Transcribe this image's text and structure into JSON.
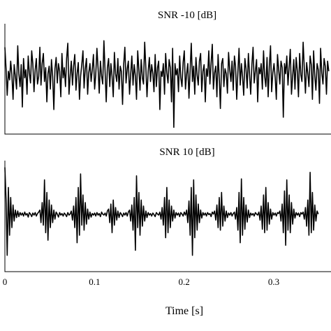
{
  "chart_data": [
    {
      "type": "line",
      "title": "SNR -10 [dB]",
      "xlim": [
        0,
        0.36
      ],
      "ylim": [
        -1,
        1
      ],
      "grid": false,
      "series": [
        {
          "x_start": 0,
          "x_step": 0.0013,
          "values": [
            0.62,
            0.2,
            -0.32,
            0.15,
            -0.02,
            0.35,
            0.08,
            -0.4,
            0.28,
            0.05,
            -0.2,
            0.65,
            0.1,
            -0.15,
            0.28,
            -0.55,
            0.4,
            0.02,
            0.18,
            -0.3,
            0.45,
            0.12,
            -0.08,
            0.55,
            0.3,
            -0.25,
            0.18,
            0.4,
            -0.1,
            0.05,
            0.62,
            -0.12,
            0.3,
            0.5,
            -0.05,
            0.22,
            -0.45,
            0.1,
            0.25,
            -0.2,
            0.38,
            0.05,
            -0.6,
            0.2,
            0.42,
            -0.08,
            0.3,
            0.15,
            -0.35,
            0.5,
            0.02,
            0.22,
            -0.15,
            0.4,
            0.7,
            -0.3,
            0.05,
            0.35,
            -0.12,
            0.25,
            0.48,
            -0.22,
            0.1,
            0.32,
            -0.4,
            0.05,
            0.28,
            0.55,
            -0.18,
            0.2,
            0.4,
            -0.3,
            0.12,
            0.3,
            -0.05,
            0.18,
            0.48,
            -0.2,
            0.08,
            0.6,
            0.2,
            -0.28,
            0.35,
            0.05,
            -0.1,
            0.75,
            0.15,
            -0.45,
            0.22,
            0.4,
            -0.15,
            0.3,
            0.05,
            -0.35,
            0.52,
            0.1,
            -0.05,
            0.4,
            -0.2,
            0.25,
            0.15,
            -0.5,
            0.3,
            0.62,
            -0.08,
            0.2,
            0.35,
            -0.3,
            0.1,
            0.45,
            -0.12,
            0.28,
            0.05,
            -0.4,
            0.55,
            0.18,
            -0.22,
            0.38,
            0.02,
            -0.1,
            0.72,
            0.2,
            -0.35,
            0.15,
            0.42,
            -0.05,
            0.28,
            0.1,
            -0.25,
            0.48,
            -0.15,
            0.22,
            0.35,
            -0.6,
            0.15,
            0.05,
            0.3,
            -0.3,
            0.5,
            0.12,
            -0.08,
            0.38,
            0.22,
            -0.45,
            0.6,
            -0.95,
            0.3,
            0.08,
            0.2,
            -0.25,
            0.45,
            0.02,
            -0.15,
            0.33,
            0.55,
            -0.2,
            0.1,
            0.3,
            -0.38,
            0.18,
            0.7,
            -0.05,
            0.25,
            -0.3,
            0.42,
            0.08,
            -0.12,
            0.35,
            0.5,
            -0.25,
            0.15,
            0.28,
            -0.45,
            0.2,
            0.05,
            0.55,
            -0.1,
            0.3,
            0.68,
            -0.2,
            0.12,
            0.25,
            -0.35,
            0.48,
            0.02,
            -0.58,
            0.3,
            0.4,
            -0.15,
            0.2,
            0.1,
            -0.28,
            0.52,
            0.18,
            -0.05,
            0.35,
            -0.22,
            0.45,
            0.25,
            -0.4,
            0.15,
            0.6,
            -0.12,
            0.3,
            0.05,
            -0.32,
            0.4,
            0.2,
            -0.18,
            0.5,
            0.08,
            -0.3,
            0.28,
            0.62,
            -0.08,
            0.15,
            0.38,
            -0.45,
            0.22,
            0.1,
            0.3,
            -0.2,
            0.55,
            0.05,
            -0.15,
            0.42,
            -0.35,
            0.25,
            0.65,
            -0.25,
            0.12,
            0.3,
            0.02,
            -0.4,
            0.48,
            0.18,
            -0.1,
            0.35,
            0.22,
            -0.75,
            0.3,
            0.1,
            0.45,
            -0.12,
            0.25,
            0.58,
            -0.3,
            0.05,
            0.38,
            -0.2,
            0.42,
            0.15,
            -0.35,
            0.5,
            0.08,
            -0.05,
            0.72,
            0.2,
            -0.28,
            0.32,
            0.1,
            -0.15,
            0.45,
            0.28,
            -0.4,
            0.55,
            0.05,
            -0.22,
            0.3,
            0.18,
            -0.48,
            0.6,
            0.12,
            -0.1,
            0.4,
            0.25,
            -0.3,
            0.35,
            0.15
          ]
        }
      ]
    },
    {
      "type": "line",
      "title": "SNR 10 [dB]",
      "xlabel": "Time [s]",
      "xticks": [
        "0",
        "0.1",
        "0.2",
        "0.3"
      ],
      "xlim": [
        0,
        0.36
      ],
      "ylim": [
        -1,
        1
      ],
      "grid": false,
      "series": [
        {
          "x_start": 0,
          "x_step": 0.0013,
          "values": [
            0.95,
            0.3,
            -0.8,
            0.55,
            -0.4,
            0.35,
            -0.25,
            0.2,
            -0.12,
            0.1,
            -0.05,
            0.08,
            -0.03,
            0.05,
            0.0,
            0.04,
            -0.02,
            0.06,
            0.0,
            0.03,
            -0.04,
            0.05,
            0.02,
            -0.03,
            0.04,
            0.0,
            0.05,
            -0.02,
            0.03,
            0.06,
            0.1,
            -0.15,
            0.25,
            -0.2,
            0.7,
            -0.35,
            0.45,
            -0.5,
            0.3,
            -0.25,
            0.2,
            -0.15,
            0.1,
            -0.08,
            0.06,
            0.02,
            -0.04,
            0.05,
            0.0,
            0.03,
            -0.02,
            0.04,
            0.01,
            -0.03,
            0.05,
            0.0,
            0.02,
            0.08,
            -0.1,
            0.18,
            -0.25,
            0.35,
            -0.55,
            0.55,
            -0.4,
            0.82,
            -0.2,
            0.4,
            -0.3,
            0.25,
            -0.18,
            0.12,
            -0.08,
            0.06,
            -0.04,
            0.03,
            0.0,
            0.04,
            -0.02,
            0.05,
            0.0,
            0.03,
            -0.03,
            0.06,
            0.02,
            0.0,
            0.04,
            -0.02,
            0.08,
            0.12,
            -0.15,
            0.22,
            -0.35,
            0.3,
            -0.2,
            0.15,
            -0.1,
            0.08,
            -0.05,
            0.05,
            0.02,
            -0.03,
            0.04,
            0.0,
            0.05,
            -0.02,
            0.06,
            0.1,
            -0.12,
            0.2,
            -0.3,
            0.35,
            -0.7,
            0.78,
            -0.25,
            0.45,
            -0.4,
            0.3,
            -0.22,
            0.18,
            -0.12,
            0.08,
            -0.05,
            0.05,
            0.0,
            0.03,
            -0.02,
            0.04,
            0.01,
            -0.03,
            0.05,
            0.02,
            0.0,
            0.06,
            -0.08,
            0.15,
            -0.2,
            0.35,
            -0.45,
            0.55,
            -0.35,
            0.3,
            -0.25,
            0.18,
            -0.12,
            0.1,
            -0.06,
            0.05,
            0.0,
            0.04,
            -0.03,
            0.05,
            0.02,
            -0.02,
            0.06,
            0.0,
            0.1,
            -0.15,
            0.28,
            -0.4,
            0.55,
            -0.8,
            0.7,
            -0.45,
            0.4,
            -0.3,
            0.22,
            -0.15,
            0.1,
            -0.06,
            0.05,
            0.0,
            0.04,
            -0.02,
            0.05,
            0.01,
            0.03,
            -0.03,
            0.06,
            0.02,
            0.08,
            -0.1,
            0.2,
            -0.25,
            0.35,
            -0.3,
            0.45,
            -0.22,
            0.18,
            -0.12,
            0.08,
            -0.05,
            0.04,
            0.0,
            0.05,
            -0.02,
            0.03,
            0.06,
            -0.08,
            0.15,
            -0.3,
            0.45,
            -0.55,
            0.72,
            -0.4,
            0.35,
            -0.28,
            0.2,
            -0.14,
            0.1,
            -0.05,
            0.04,
            0.0,
            0.03,
            -0.02,
            0.05,
            0.02,
            0.0,
            0.06,
            -0.1,
            0.18,
            -0.28,
            0.4,
            -0.35,
            0.55,
            -0.3,
            0.25,
            -0.18,
            0.12,
            -0.08,
            0.05,
            0.0,
            0.04,
            -0.02,
            0.05,
            0.03,
            0.08,
            -0.12,
            0.22,
            -0.35,
            0.48,
            -0.6,
            0.7,
            -0.3,
            0.4,
            -0.35,
            0.25,
            -0.18,
            0.12,
            -0.06,
            0.05,
            0.0,
            0.04,
            -0.03,
            0.05,
            0.02,
            0.06,
            -0.08,
            0.15,
            -0.22,
            0.3,
            -0.4,
            0.85,
            -0.35,
            0.45,
            -0.3,
            0.2,
            -0.12,
            0.08,
            0.02
          ]
        }
      ]
    }
  ]
}
